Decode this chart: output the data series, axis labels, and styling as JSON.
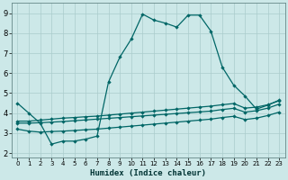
{
  "xlabel": "Humidex (Indice chaleur)",
  "bg_color": "#cce8e8",
  "grid_color": "#aacccc",
  "line_color": "#006666",
  "xlim": [
    -0.5,
    23.5
  ],
  "ylim": [
    1.8,
    9.5
  ],
  "xticks": [
    0,
    1,
    2,
    3,
    4,
    5,
    6,
    7,
    8,
    9,
    10,
    11,
    12,
    13,
    14,
    15,
    16,
    17,
    18,
    19,
    20,
    21,
    22,
    23
  ],
  "yticks": [
    2,
    3,
    4,
    5,
    6,
    7,
    8,
    9
  ],
  "line1_x": [
    0,
    1,
    2,
    3,
    4,
    5,
    6,
    7,
    8,
    9,
    10,
    11,
    12,
    13,
    14,
    15,
    16,
    17,
    18,
    19,
    20,
    21,
    22,
    23
  ],
  "line1_y": [
    4.5,
    4.0,
    3.5,
    2.45,
    2.6,
    2.6,
    2.7,
    2.85,
    5.55,
    6.8,
    7.7,
    8.95,
    8.65,
    8.5,
    8.3,
    8.9,
    8.9,
    8.1,
    6.3,
    5.4,
    4.85,
    4.2,
    4.4,
    4.65
  ],
  "line2_x": [
    0,
    1,
    2,
    3,
    4,
    5,
    6,
    7,
    8,
    9,
    10,
    11,
    12,
    13,
    14,
    15,
    16,
    17,
    18,
    19,
    20,
    21,
    22,
    23
  ],
  "line2_y": [
    3.6,
    3.6,
    3.65,
    3.7,
    3.75,
    3.78,
    3.82,
    3.85,
    3.9,
    3.95,
    4.0,
    4.05,
    4.1,
    4.15,
    4.2,
    4.25,
    4.3,
    4.35,
    4.42,
    4.48,
    4.25,
    4.3,
    4.42,
    4.62
  ],
  "line3_x": [
    0,
    1,
    2,
    3,
    4,
    5,
    6,
    7,
    8,
    9,
    10,
    11,
    12,
    13,
    14,
    15,
    16,
    17,
    18,
    19,
    20,
    21,
    22,
    23
  ],
  "line3_y": [
    3.5,
    3.5,
    3.52,
    3.55,
    3.58,
    3.62,
    3.66,
    3.7,
    3.74,
    3.78,
    3.82,
    3.86,
    3.9,
    3.94,
    3.98,
    4.02,
    4.06,
    4.1,
    4.18,
    4.24,
    4.05,
    4.12,
    4.25,
    4.45
  ],
  "line4_x": [
    0,
    1,
    2,
    3,
    4,
    5,
    6,
    7,
    8,
    9,
    10,
    11,
    12,
    13,
    14,
    15,
    16,
    17,
    18,
    19,
    20,
    21,
    22,
    23
  ],
  "line4_y": [
    3.2,
    3.1,
    3.05,
    3.08,
    3.1,
    3.13,
    3.17,
    3.2,
    3.25,
    3.3,
    3.35,
    3.4,
    3.45,
    3.5,
    3.55,
    3.6,
    3.65,
    3.7,
    3.78,
    3.84,
    3.68,
    3.75,
    3.88,
    4.05
  ]
}
